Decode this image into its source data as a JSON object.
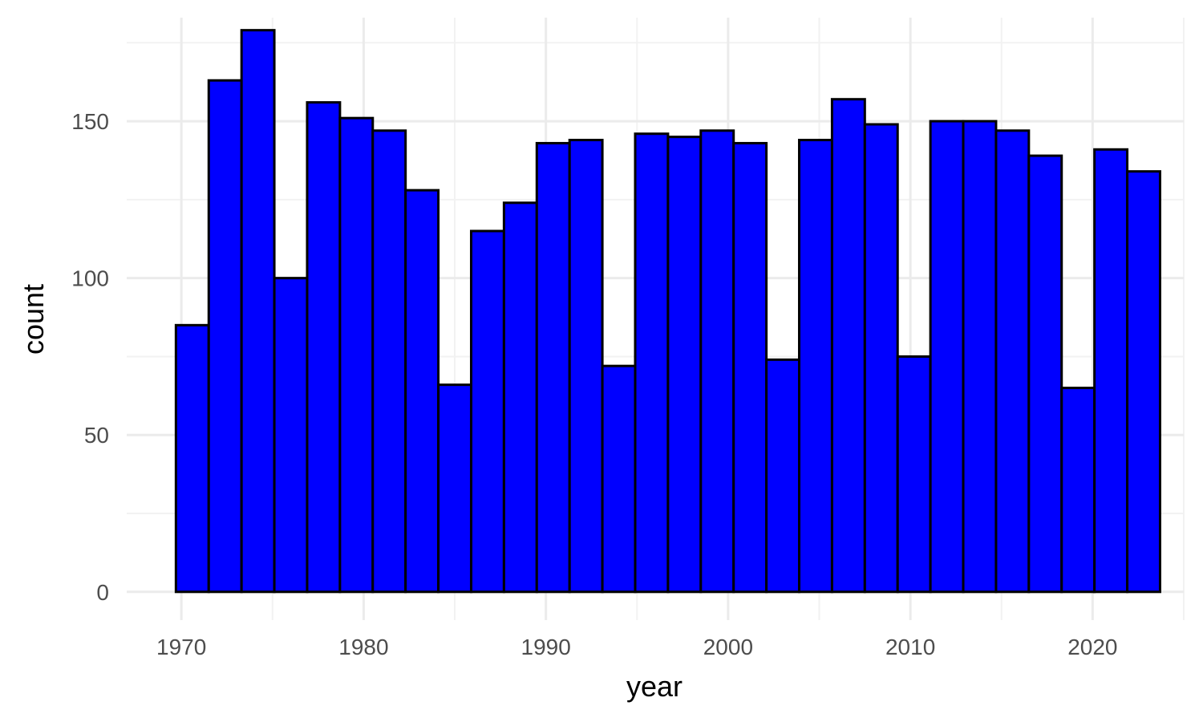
{
  "chart_data": {
    "type": "bar",
    "subtype": "histogram",
    "title": "",
    "xlabel": "year",
    "ylabel": "count",
    "xlim": [
      1967,
      2025
    ],
    "ylim": [
      -9,
      183
    ],
    "bin_width": 1.795,
    "x_ticks": [
      1970,
      1980,
      1990,
      2000,
      2010,
      2020
    ],
    "y_ticks": [
      0,
      50,
      100,
      150
    ],
    "x_minor_ticks": [
      1975,
      1985,
      1995,
      2005,
      2015,
      2025
    ],
    "y_minor_ticks": [
      25,
      75,
      125,
      175
    ],
    "grid": true,
    "legend": "none",
    "bins": [
      {
        "x_start": 1969.7,
        "x_end": 1971.5,
        "value": 85
      },
      {
        "x_start": 1971.5,
        "x_end": 1973.3,
        "value": 163
      },
      {
        "x_start": 1973.3,
        "x_end": 1975.1,
        "value": 179
      },
      {
        "x_start": 1975.1,
        "x_end": 1976.9,
        "value": 100
      },
      {
        "x_start": 1976.9,
        "x_end": 1978.7,
        "value": 156
      },
      {
        "x_start": 1978.7,
        "x_end": 1980.5,
        "value": 151
      },
      {
        "x_start": 1980.5,
        "x_end": 1982.3,
        "value": 147
      },
      {
        "x_start": 1982.3,
        "x_end": 1984.1,
        "value": 128
      },
      {
        "x_start": 1984.1,
        "x_end": 1985.9,
        "value": 66
      },
      {
        "x_start": 1985.9,
        "x_end": 1987.7,
        "value": 115
      },
      {
        "x_start": 1987.7,
        "x_end": 1989.5,
        "value": 124
      },
      {
        "x_start": 1989.5,
        "x_end": 1991.3,
        "value": 143
      },
      {
        "x_start": 1991.3,
        "x_end": 1993.1,
        "value": 144
      },
      {
        "x_start": 1993.1,
        "x_end": 1994.9,
        "value": 72
      },
      {
        "x_start": 1994.9,
        "x_end": 1996.7,
        "value": 146
      },
      {
        "x_start": 1996.7,
        "x_end": 1998.5,
        "value": 145
      },
      {
        "x_start": 1998.5,
        "x_end": 2000.3,
        "value": 147
      },
      {
        "x_start": 2000.3,
        "x_end": 2002.1,
        "value": 143
      },
      {
        "x_start": 2002.1,
        "x_end": 2003.9,
        "value": 74
      },
      {
        "x_start": 2003.9,
        "x_end": 2005.7,
        "value": 144
      },
      {
        "x_start": 2005.7,
        "x_end": 2007.5,
        "value": 157
      },
      {
        "x_start": 2007.5,
        "x_end": 2009.3,
        "value": 149
      },
      {
        "x_start": 2009.3,
        "x_end": 2011.1,
        "value": 75
      },
      {
        "x_start": 2011.1,
        "x_end": 2012.9,
        "value": 150
      },
      {
        "x_start": 2012.9,
        "x_end": 2014.7,
        "value": 150
      },
      {
        "x_start": 2014.7,
        "x_end": 2016.5,
        "value": 147
      },
      {
        "x_start": 2016.5,
        "x_end": 2018.3,
        "value": 139
      },
      {
        "x_start": 2018.3,
        "x_end": 2020.1,
        "value": 65
      },
      {
        "x_start": 2020.1,
        "x_end": 2021.9,
        "value": 141
      },
      {
        "x_start": 2021.9,
        "x_end": 2023.7,
        "value": 134
      }
    ],
    "colors": {
      "bar_fill": "#0000ff",
      "bar_stroke": "#000000",
      "grid_major": "#ebebeb",
      "grid_minor": "#f2f2f2",
      "tick_label": "#4d4d4d",
      "axis_title": "#000000"
    }
  }
}
